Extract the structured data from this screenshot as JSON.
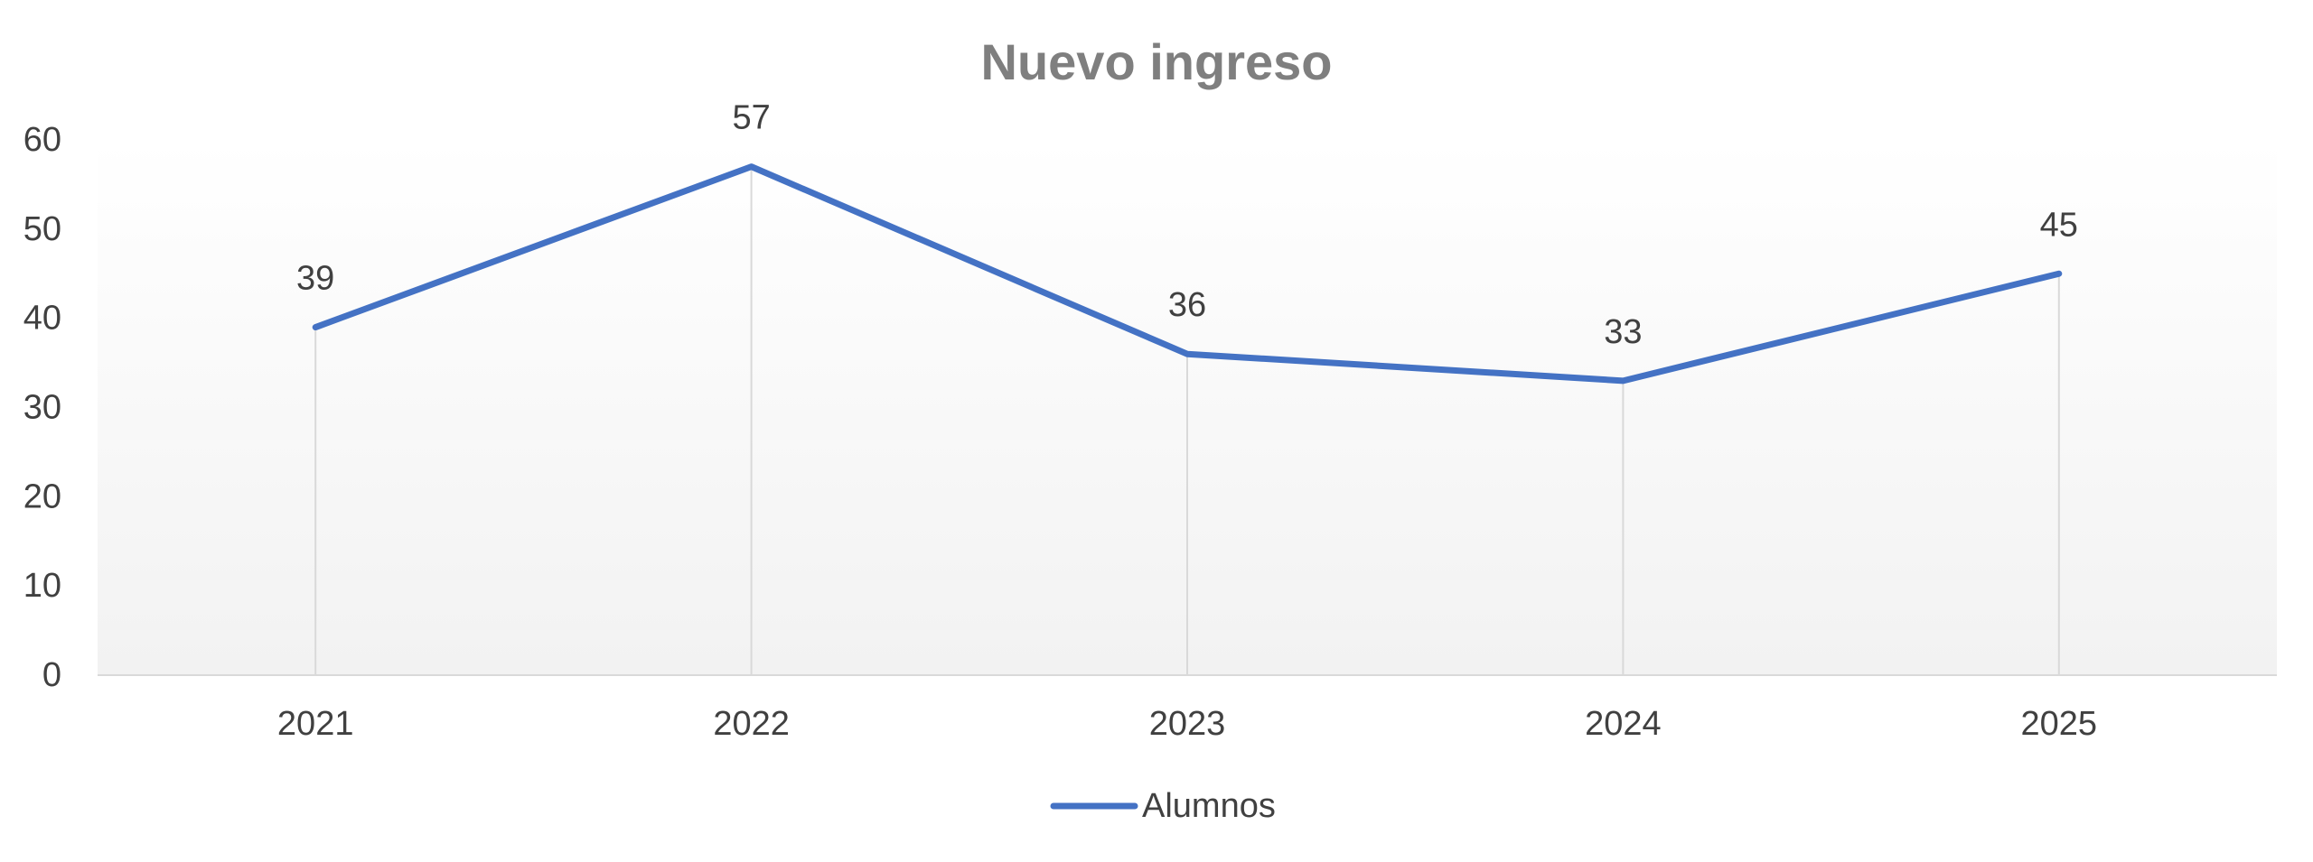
{
  "chart_data": {
    "type": "line",
    "title": "Nuevo ingreso",
    "categories": [
      "2021",
      "2022",
      "2023",
      "2024",
      "2025"
    ],
    "series": [
      {
        "name": "Alumnos",
        "values": [
          39,
          57,
          36,
          33,
          45
        ],
        "color": "#4472c4"
      }
    ],
    "ylim": [
      0,
      60
    ],
    "yticks": [
      "0",
      "10",
      "20",
      "30",
      "40",
      "50",
      "60"
    ],
    "data_labels": [
      "39",
      "57",
      "36",
      "33",
      "45"
    ],
    "grid": false,
    "drop_lines": true,
    "legend_position": "bottom",
    "colors": {
      "axis_line": "#d9d9d9",
      "drop_line": "#d9d9d9",
      "plot_gradient_top": "#ffffff",
      "plot_gradient_bottom": "#f2f2f2"
    }
  }
}
